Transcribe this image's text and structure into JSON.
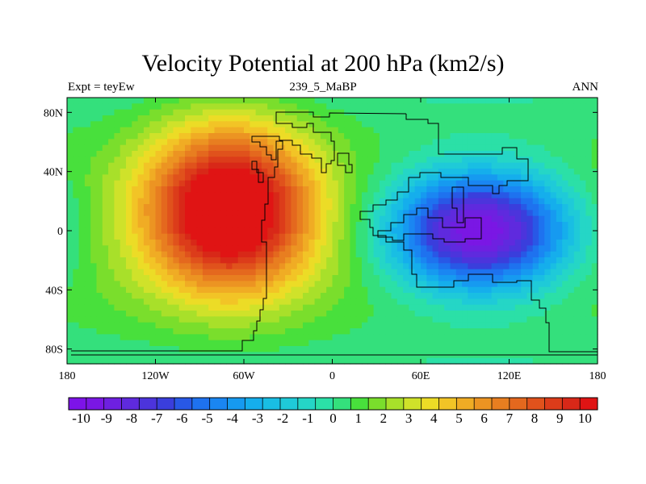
{
  "title": "Velocity Potential at 200 hPa (km2/s)",
  "subtitle_left": "Expt = teyEw",
  "subtitle_center": "239_5_MaBP",
  "subtitle_right": "ANN",
  "colors": {
    "colormap": [
      "#7d13e8",
      "#7a17e4",
      "#6e20e0",
      "#5f2ade",
      "#4c34dc",
      "#3a3edc",
      "#2858e6",
      "#1e72ef",
      "#1a86f2",
      "#169af0",
      "#15aeec",
      "#19bee3",
      "#1fcad8",
      "#25d6c6",
      "#2be0a7",
      "#34e07c",
      "#48e03c",
      "#7ade2c",
      "#a8e02a",
      "#cfe22a",
      "#ecdc26",
      "#f2c426",
      "#f0ac24",
      "#ec9422",
      "#e87e20",
      "#e4681e",
      "#e0521c",
      "#dc3c1a",
      "#d82818",
      "#e01414"
    ],
    "coastline": "#000000"
  },
  "chart_data": {
    "type": "heatmap",
    "title": "Velocity Potential at 200 hPa (km2/s)",
    "units": "km2/s",
    "x_axis": {
      "range": [
        -180,
        180
      ],
      "tick_values": [
        -180,
        -120,
        -60,
        0,
        60,
        120,
        180
      ],
      "tick_labels": [
        "180",
        "120W",
        "60W",
        "0",
        "60E",
        "120E",
        "180"
      ]
    },
    "y_axis": {
      "range": [
        -90,
        90
      ],
      "tick_values": [
        80,
        40,
        0,
        -40,
        -80
      ],
      "tick_labels": [
        "80N",
        "40N",
        "0",
        "40S",
        "80S"
      ]
    },
    "colorbar": {
      "min": -10.5,
      "max": 10.5,
      "step": 0.5,
      "tick_values": [
        -10,
        -9,
        -8,
        -7,
        -6,
        -5,
        -4,
        -3,
        -2,
        -1,
        0,
        1,
        2,
        3,
        4,
        5,
        6,
        7,
        8,
        9,
        10
      ],
      "tick_labels": [
        "-10",
        "-9",
        "-8",
        "-7",
        "-6",
        "-5",
        "-4",
        "-3",
        "-2",
        "-1",
        "0",
        "1",
        "2",
        "3",
        "4",
        "5",
        "6",
        "7",
        "8",
        "9",
        "10"
      ]
    },
    "field_features": [
      {
        "kind": "maximum",
        "lon": -70,
        "lat": 15,
        "value": 9.5
      },
      {
        "kind": "minimum",
        "lon": 100,
        "lat": 0,
        "value": -10
      }
    ]
  }
}
